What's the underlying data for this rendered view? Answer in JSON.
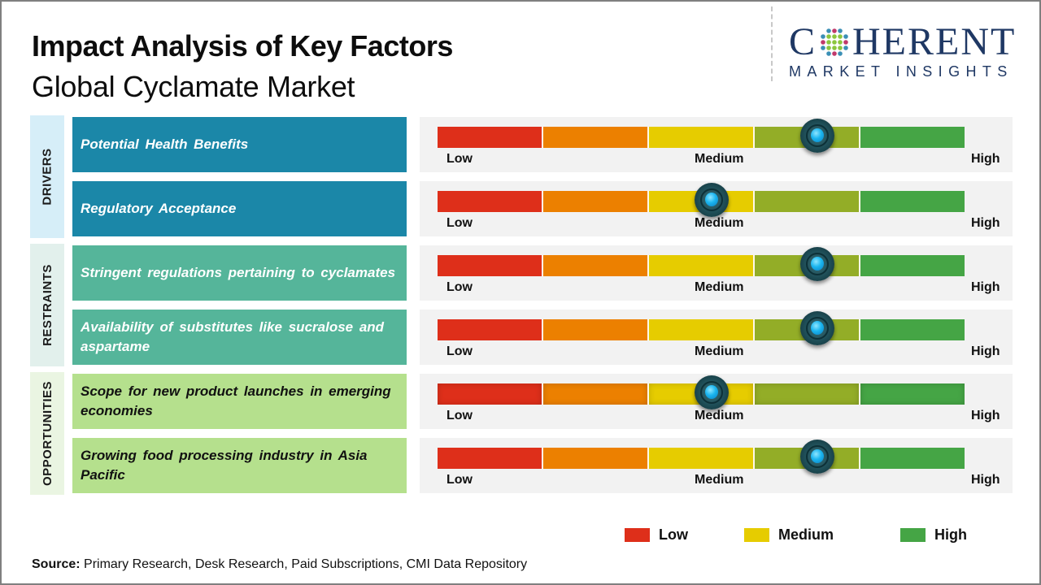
{
  "header": {
    "title": "Impact Analysis of Key Factors",
    "subtitle": "Global Cyclamate Market"
  },
  "logo": {
    "main_first": "C",
    "main_rest": "HERENT",
    "sub": "MARKET INSIGHTS"
  },
  "colors": {
    "drivers_bg": "#1b87a8",
    "drivers_label_bg": "#d6eef8",
    "restraints_bg": "#55b59a",
    "restraints_label_bg": "#e2f0ec",
    "opportunities_bg": "#b5e08d",
    "opportunities_label_bg": "#eaf5e2",
    "scale": [
      "#de2f1a",
      "#ec8000",
      "#e6cc00",
      "#93ad27",
      "#45a545"
    ]
  },
  "chart_data": {
    "type": "gauge-table",
    "title": "Impact Analysis of Key Factors",
    "subtitle": "Global Cyclamate Market",
    "scale_labels": [
      "Low",
      "Medium",
      "High"
    ],
    "scale_range": [
      0,
      1
    ],
    "categories": [
      {
        "name": "DRIVERS",
        "factors": [
          {
            "label": "Potential Health Benefits",
            "impact": 0.72
          },
          {
            "label": "Regulatory Acceptance",
            "impact": 0.52
          }
        ]
      },
      {
        "name": "RESTRAINTS",
        "factors": [
          {
            "label": "Stringent regulations pertaining to cyclamates",
            "impact": 0.72
          },
          {
            "label": "Availability of substitutes like sucralose and aspartame",
            "impact": 0.72
          }
        ]
      },
      {
        "name": "OPPORTUNITIES",
        "factors": [
          {
            "label": "Scope for new product launches in emerging economies",
            "impact": 0.52
          },
          {
            "label": "Growing food processing industry in Asia Pacific",
            "impact": 0.72
          }
        ]
      }
    ],
    "legend": [
      {
        "label": "Low",
        "color": "#de2f1a"
      },
      {
        "label": "Medium",
        "color": "#e6cc00"
      },
      {
        "label": "High",
        "color": "#45a545"
      }
    ]
  },
  "footer": {
    "source_label": "Source:",
    "source_text": " Primary Research, Desk Research, Paid Subscriptions, CMI Data Repository"
  }
}
